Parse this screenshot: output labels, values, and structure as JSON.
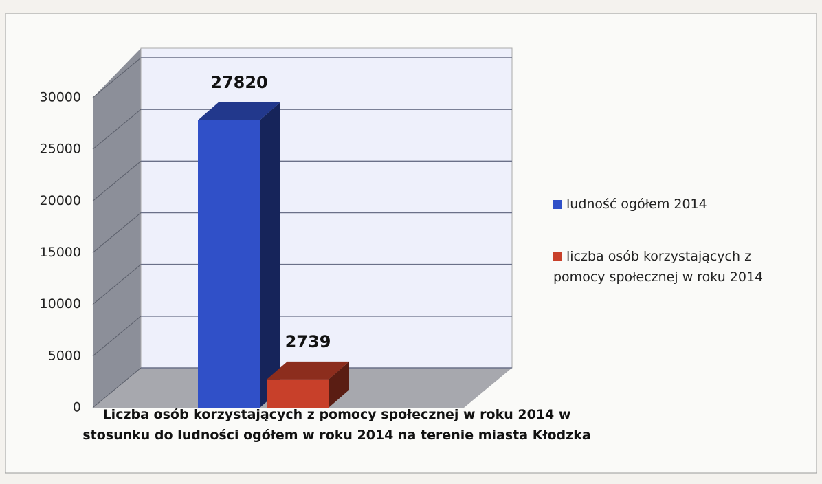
{
  "chart_data": {
    "type": "bar",
    "categories": [
      "Liczba osób korzystających z pomocy społecznej w roku 2014 w stosunku do ludności ogółem w roku 2014 na terenie miasta Kłodzka"
    ],
    "series": [
      {
        "name": "ludność ogółem 2014",
        "color": "#3050c8",
        "values": [
          27820
        ]
      },
      {
        "name": "liczba osób korzystających z pomocy społecznej w roku 2014",
        "color": "#c8402a",
        "values": [
          2739
        ]
      }
    ],
    "ylim": [
      0,
      30000
    ],
    "yticks": [
      0,
      5000,
      10000,
      15000,
      20000,
      25000,
      30000
    ],
    "grid": true,
    "legend": "right"
  }
}
